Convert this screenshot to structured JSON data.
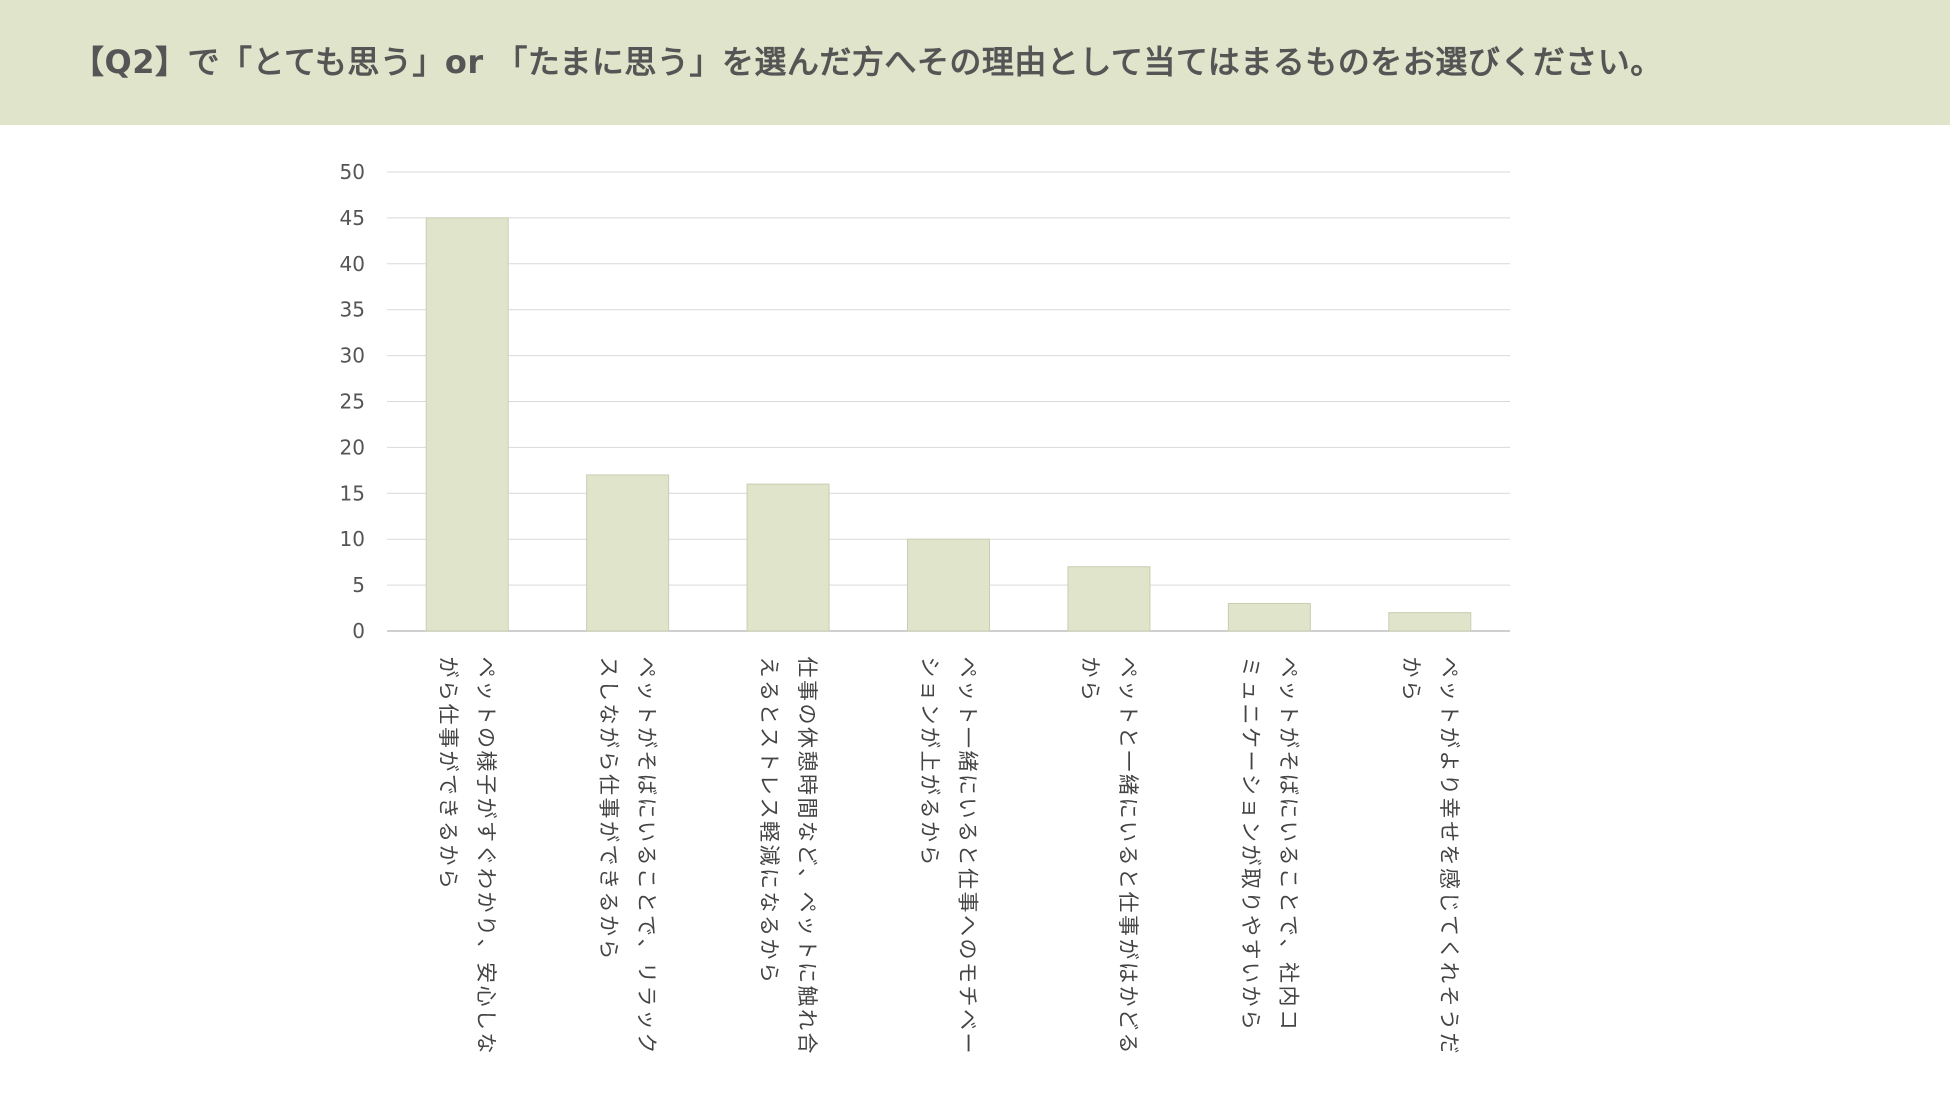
{
  "header": {
    "title": "【Q2】で「とても思う」or 「たまに思う」を選んだ方へその理由として当てはまるものをお選びください。"
  },
  "colors": {
    "header_bg": "#e0e4cb",
    "bar_fill": "#e0e4cb",
    "bar_stroke": "#c9ceb2",
    "grid": "#d9d9d9",
    "axis": "#bfbfbf"
  },
  "chart_data": {
    "type": "bar",
    "title": "",
    "xlabel": "",
    "ylabel": "",
    "ylim": [
      0,
      50
    ],
    "yticks": [
      0,
      5,
      10,
      15,
      20,
      25,
      30,
      35,
      40,
      45,
      50
    ],
    "grid": true,
    "legend": "none",
    "categories": [
      "ペットの様子がすぐわかり、安心しながら仕事ができるから",
      "ペットがそばにいることで、リラックスしながら仕事ができるから",
      "仕事の休憩時間など、ペットに触れ合えるとストレス軽減になるから",
      "ペット一緒にいると仕事へのモチベーションが上がるから",
      "ペットと一緒にいると仕事がはかどるから",
      "ペットがそばにいることで、社内コミュニケーションが取りやすいから",
      "ペットがより幸せを感じてくれそうだから"
    ],
    "category_lines": [
      [
        "ペットの様子がすぐわかり、安心しな",
        "がら仕事ができるから"
      ],
      [
        "ペットがそばにいることで、リラック",
        "スしながら仕事ができるから"
      ],
      [
        "仕事の休憩時間など、ペットに触れ合",
        "えるとストレス軽減になるから"
      ],
      [
        "ペット一緒にいると仕事へのモチベー",
        "ションが上がるから"
      ],
      [
        "ペットと一緒にいると仕事がはかどる",
        "から"
      ],
      [
        "ペットがそばにいることで、社内コ",
        "ミュニケーションが取りやすいから"
      ],
      [
        "ペットがより幸せを感じてくれそうだ",
        "から"
      ]
    ],
    "values": [
      45,
      17,
      16,
      10,
      7,
      3,
      2
    ]
  }
}
